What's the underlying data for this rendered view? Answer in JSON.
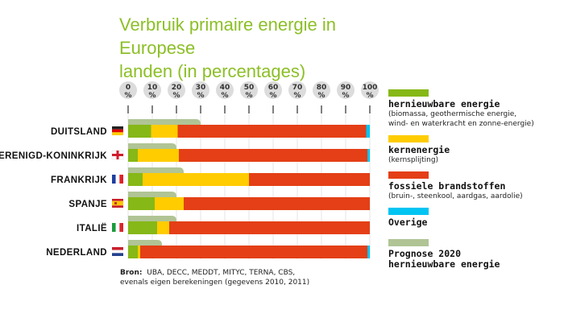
{
  "chart_data": {
    "type": "bar",
    "orientation": "horizontal",
    "stacked": true,
    "title": "Verbruik primaire energie in Europese landen (in percentages)",
    "xlabel": "",
    "ylabel": "",
    "xlim": [
      0,
      100
    ],
    "tick_labels": [
      "0",
      "10",
      "20",
      "30",
      "40",
      "50",
      "60",
      "70",
      "80",
      "90",
      "100"
    ],
    "tick_unit": "%",
    "categories": [
      "DUITSLAND",
      "VERENIGD-KONINKRIJK",
      "FRANKRIJK",
      "SPANJE",
      "ITALIË",
      "NEDERLAND"
    ],
    "flags": [
      "de",
      "gb-eng",
      "fr",
      "es",
      "it",
      "nl"
    ],
    "series": [
      {
        "name": "hernieuwbare energie",
        "color": "#86b817",
        "values": [
          9.5,
          4,
          6,
          11,
          12,
          4
        ]
      },
      {
        "name": "kernenergie",
        "color": "#ffcc00",
        "values": [
          11,
          17,
          44,
          12,
          5,
          1
        ]
      },
      {
        "name": "fossiele brandstoffen",
        "color": "#e43f16",
        "values": [
          78,
          78,
          50,
          77,
          83,
          94
        ]
      },
      {
        "name": "Overige",
        "color": "#00c4f2",
        "values": [
          1.5,
          1,
          0,
          0,
          0,
          1
        ]
      }
    ],
    "prognosis": {
      "name": "Prognose 2020 hernieuwbare energie",
      "color": "#b0c495",
      "values": [
        30,
        20,
        23,
        20,
        20,
        14
      ]
    },
    "grid": true,
    "legend_position": "right"
  },
  "legend": [
    {
      "color": "#86b817",
      "title": "hernieuwbare energie",
      "sub": [
        "(biomassa, geothermische energie,",
        "wind- en waterkracht en zonne-energie)"
      ]
    },
    {
      "color": "#ffcc00",
      "title": "kernenergie",
      "sub": [
        "(kernsplijting)"
      ]
    },
    {
      "color": "#e43f16",
      "title": "fossiele brandstoffen",
      "sub": [
        "(bruin-, steenkool, aardgas, aardolie)"
      ]
    },
    {
      "color": "#00c4f2",
      "title": "Overige",
      "sub": []
    },
    {
      "color": "#b0c495",
      "title": "Prognose 2020",
      "title2": "hernieuwbare energie",
      "sub": []
    }
  ],
  "source": {
    "label": "Bron:",
    "line1": "UBA, DECC, MEDDT, MITYC, TERNA, CBS,",
    "line2": "evenals eigen berekeningen (gegevens 2010, 2011)"
  },
  "title_line1": "Verbruik primaire energie in Europese",
  "title_line2": "landen (in percentages)"
}
